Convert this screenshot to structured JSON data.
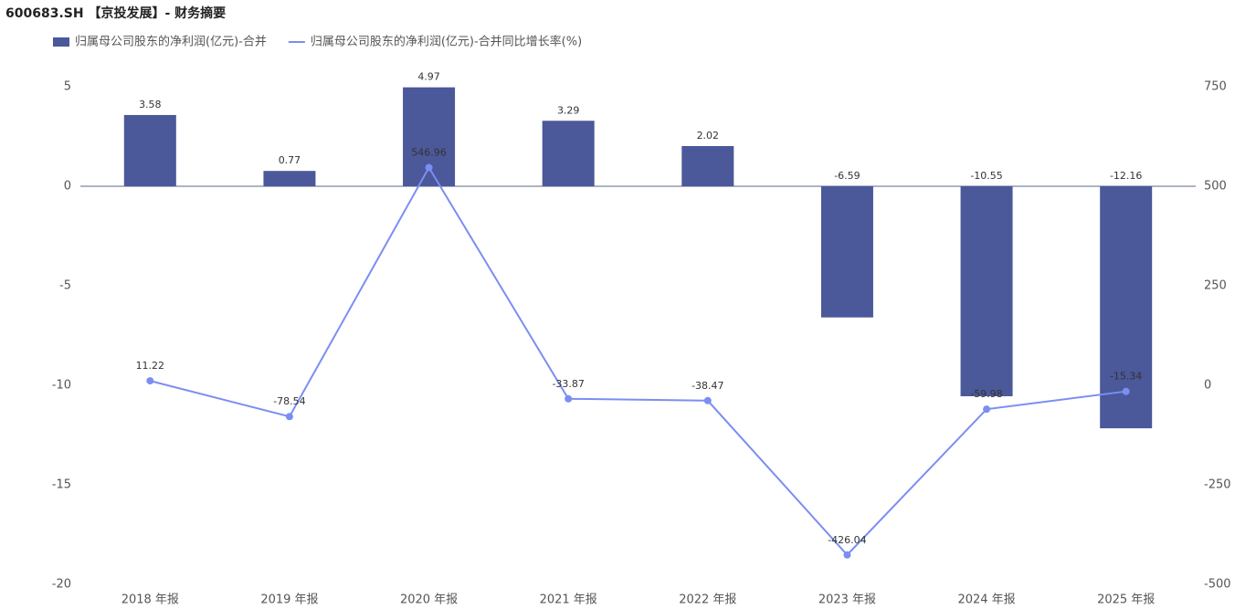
{
  "chart_data": {
    "type": "bar-line",
    "title": "600683.SH 【京投发展】- 财务摘要",
    "categories": [
      "2018 年报",
      "2019 年报",
      "2020 年报",
      "2021 年报",
      "2022 年报",
      "2023 年报",
      "2024 年报",
      "2025 年报"
    ],
    "series": [
      {
        "name": "归属母公司股东的净利润(亿元)-合并",
        "type": "bar",
        "color": "#4b5899",
        "values": [
          3.58,
          0.77,
          4.97,
          3.29,
          2.02,
          -6.59,
          -10.55,
          -12.16
        ]
      },
      {
        "name": "归属母公司股东的净利润(亿元)-合并同比增长率(%)",
        "type": "line",
        "axis": "y2",
        "color": "#7b8ef2",
        "values": [
          11.22,
          -78.54,
          546.96,
          -33.87,
          -38.47,
          -426.04,
          -59.98,
          -15.34
        ]
      }
    ],
    "ylim": [
      -20,
      5
    ],
    "yticks": [
      5,
      0,
      -5,
      -10,
      -15,
      -20
    ],
    "y2lim": [
      -500,
      750
    ],
    "y2ticks": [
      750,
      500,
      250,
      0,
      -250,
      -500
    ],
    "grid": false
  }
}
